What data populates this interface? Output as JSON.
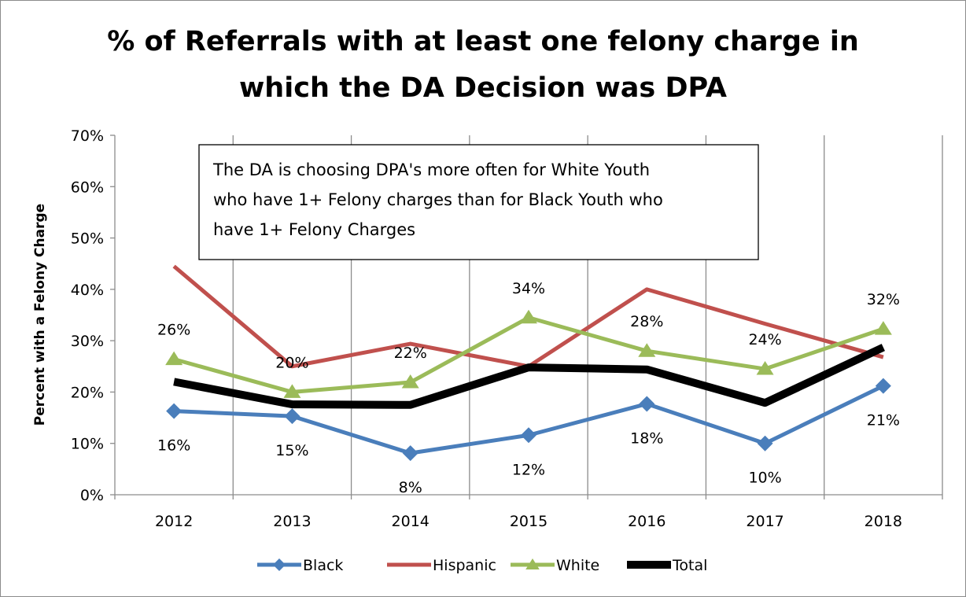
{
  "chart_data": {
    "type": "line",
    "title_lines": [
      "% of Referrals with at least one felony charge in",
      "which the  DA Decision was DPA"
    ],
    "xlabel": "",
    "ylabel": "Percent with a Felony Charge",
    "categories": [
      "2012",
      "2013",
      "2014",
      "2015",
      "2016",
      "2017",
      "2018"
    ],
    "ylim": [
      0,
      70
    ],
    "yticks": [
      0,
      10,
      20,
      30,
      40,
      50,
      60,
      70
    ],
    "ytick_labels": [
      "0%",
      "10%",
      "20%",
      "30%",
      "40%",
      "50%",
      "60%",
      "70%"
    ],
    "grid": "vertical",
    "legend_position": "bottom",
    "series": [
      {
        "name": "Black",
        "color": "#4a7ebb",
        "marker": "diamond",
        "values": [
          16.3,
          15.3,
          8.1,
          11.6,
          17.7,
          10.0,
          21.2
        ],
        "labels": [
          "16%",
          "15%",
          "8%",
          "12%",
          "18%",
          "10%",
          "21%"
        ]
      },
      {
        "name": "Hispanic",
        "color": "#c0504d",
        "marker": "none",
        "values": [
          44.5,
          25.0,
          29.4,
          25.0,
          40.0,
          33.3,
          26.8
        ],
        "labels": []
      },
      {
        "name": "White",
        "color": "#9bbb59",
        "marker": "triangle",
        "values": [
          26.4,
          20.0,
          21.9,
          34.5,
          28.0,
          24.5,
          32.3
        ],
        "labels": [
          "26%",
          "20%",
          "22%",
          "34%",
          "28%",
          "24%",
          "32%"
        ]
      },
      {
        "name": "Total",
        "color": "#000000",
        "marker": "none",
        "values": [
          22.0,
          17.6,
          17.5,
          24.8,
          24.4,
          17.9,
          28.7
        ],
        "labels": []
      }
    ],
    "annotation": {
      "lines": [
        "The DA is choosing DPA's more often for White Youth",
        "who have 1+ Felony charges than for Black Youth who",
        "have 1+ Felony Charges"
      ]
    }
  }
}
